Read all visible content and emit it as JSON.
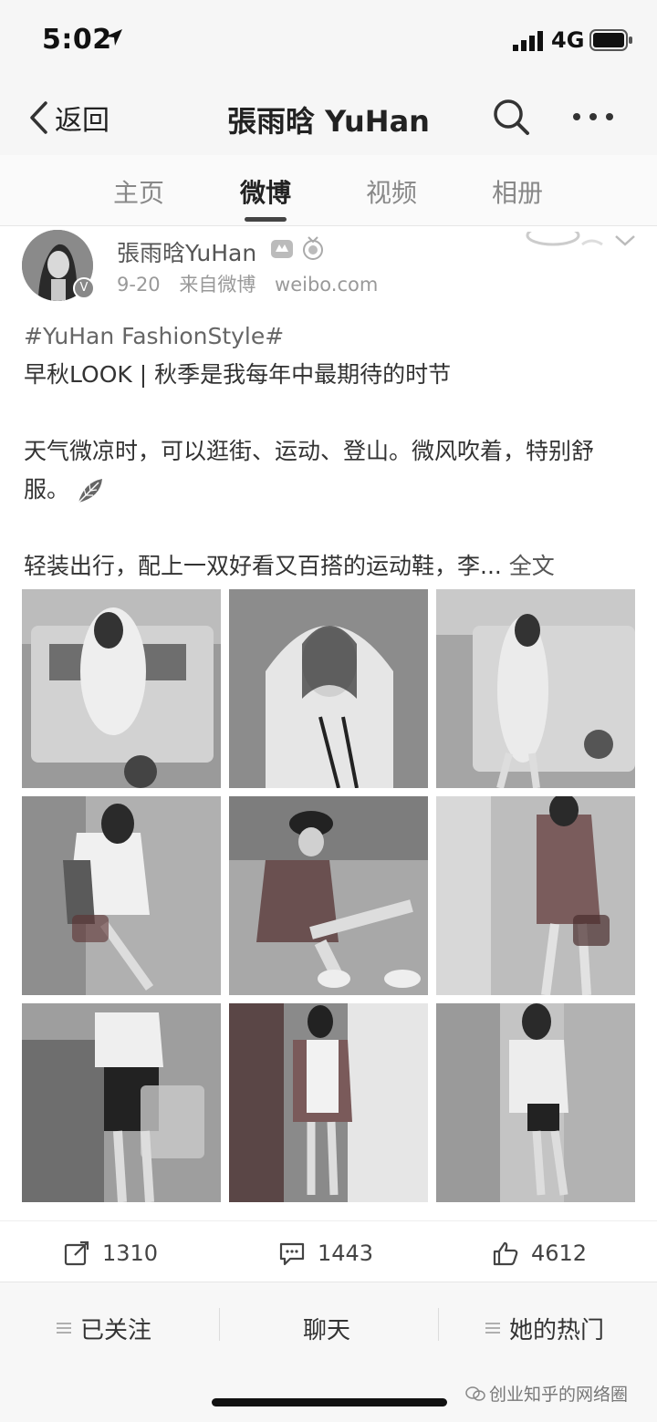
{
  "status_bar": {
    "time": "5:02",
    "network": "4G"
  },
  "nav": {
    "back_label": "返回",
    "title": "張雨晗 YuHan"
  },
  "tabs": [
    {
      "label": "主页"
    },
    {
      "label": "微博"
    },
    {
      "label": "视频"
    },
    {
      "label": "相册"
    }
  ],
  "post": {
    "author": "張雨晗YuHan",
    "date": "9-20",
    "source": "来自微博",
    "source_domain": "weibo.com",
    "hashtag": "#YuHan FashionStyle#",
    "line1": "早秋LOOK | 秋季是我每年中最期待的时节",
    "para2": "天气微凉时，可以逛街、运动、登山。微风吹着，特别舒服。",
    "para3": "轻装出行，配上一双好看又百搭的运动鞋，李...",
    "full_text_link": "全文",
    "photo_count": 9,
    "reposts": "1310",
    "comments": "1443",
    "likes": "4612"
  },
  "bottom": {
    "follow": "已关注",
    "chat": "聊天",
    "hot": "她的热门"
  },
  "watermark": "创业知乎的网络圈"
}
